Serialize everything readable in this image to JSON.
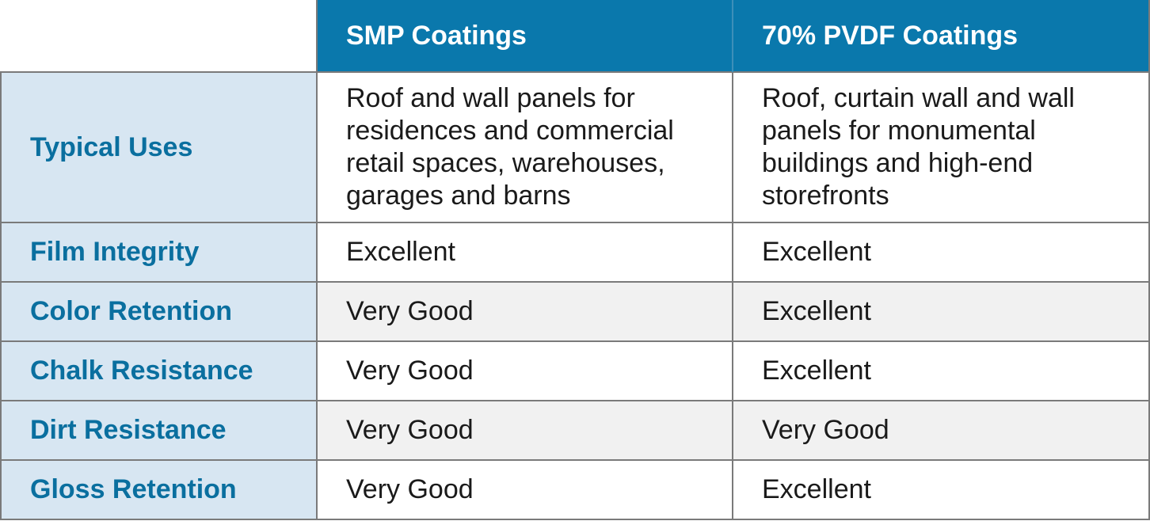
{
  "table": {
    "headers": [
      "SMP Coatings",
      "70% PVDF Coatings"
    ],
    "rows": [
      {
        "label": "Typical Uses",
        "smp": "Roof and wall panels for residences and commercial retail spaces, warehouses, garages and barns",
        "pvdf": "Roof, curtain wall and wall panels for monumental buildings and high-end storefronts"
      },
      {
        "label": "Film Integrity",
        "smp": "Excellent",
        "pvdf": "Excellent"
      },
      {
        "label": "Color Retention",
        "smp": "Very Good",
        "pvdf": "Excellent"
      },
      {
        "label": "Chalk Resistance",
        "smp": "Very Good",
        "pvdf": "Excellent"
      },
      {
        "label": "Dirt Resistance",
        "smp": "Very Good",
        "pvdf": "Very Good"
      },
      {
        "label": "Gloss Retention",
        "smp": "Very Good",
        "pvdf": "Excellent"
      }
    ]
  },
  "colors": {
    "header_bg": "#0a78ac",
    "label_bg": "#d7e6f2",
    "label_text": "#0a6f9f",
    "shaded_row_bg": "#f1f1f1"
  }
}
